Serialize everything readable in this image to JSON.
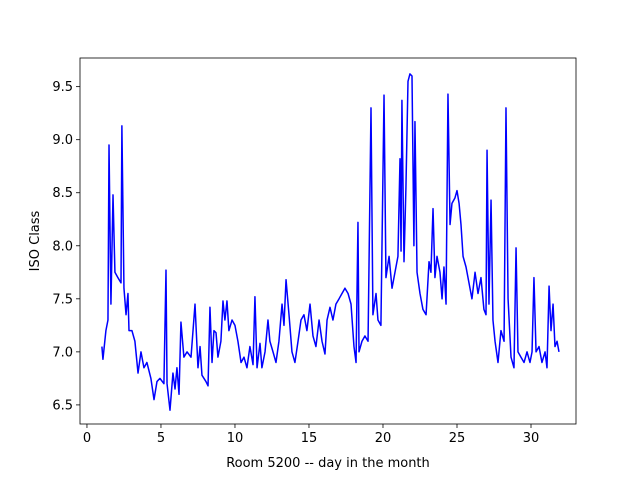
{
  "chart_data": {
    "type": "line",
    "xlabel": "Room 5200 -- day in the month",
    "ylabel": "ISO Class",
    "xlim": [
      -0.47,
      33.04
    ],
    "ylim": [
      6.32,
      9.77
    ],
    "xticks": [
      0,
      5,
      10,
      15,
      20,
      25,
      30
    ],
    "yticks": [
      6.5,
      {
        "value": 7.0,
        "label": "7.0"
      },
      7.5,
      {
        "value": 8.0,
        "label": "8.0"
      },
      8.5,
      {
        "value": 9.0,
        "label": "9.0"
      },
      9.5
    ],
    "x": [
      1.01,
      1.08,
      1.28,
      1.42,
      1.49,
      1.62,
      1.76,
      1.89,
      2.09,
      2.3,
      2.36,
      2.5,
      2.64,
      2.77,
      2.84,
      3.04,
      3.24,
      3.45,
      3.65,
      3.85,
      4.05,
      4.32,
      4.53,
      4.73,
      4.93,
      5.2,
      5.34,
      5.41,
      5.61,
      5.81,
      5.95,
      6.08,
      6.22,
      6.35,
      6.55,
      6.76,
      7.03,
      7.3,
      7.5,
      7.64,
      7.77,
      8.04,
      8.18,
      8.31,
      8.45,
      8.58,
      8.72,
      8.85,
      9.05,
      9.19,
      9.32,
      9.46,
      9.59,
      9.8,
      10.0,
      10.2,
      10.41,
      10.61,
      10.81,
      11.01,
      11.22,
      11.35,
      11.49,
      11.69,
      11.82,
      12.03,
      12.23,
      12.36,
      12.57,
      12.77,
      12.97,
      13.18,
      13.31,
      13.45,
      13.65,
      13.85,
      14.05,
      14.26,
      14.46,
      14.66,
      14.86,
      15.07,
      15.27,
      15.47,
      15.68,
      15.88,
      16.08,
      16.22,
      16.42,
      16.62,
      16.82,
      17.03,
      17.23,
      17.43,
      17.64,
      17.84,
      18.04,
      18.18,
      18.31,
      18.38,
      18.58,
      18.78,
      18.99,
      19.19,
      19.32,
      19.53,
      19.66,
      19.86,
      20.07,
      20.2,
      20.41,
      20.61,
      20.81,
      21.01,
      21.15,
      21.22,
      21.28,
      21.42,
      21.55,
      21.69,
      21.82,
      21.96,
      22.09,
      22.16,
      22.3,
      22.5,
      22.7,
      22.91,
      23.11,
      23.24,
      23.38,
      23.51,
      23.65,
      23.85,
      23.99,
      24.12,
      24.26,
      24.39,
      24.53,
      24.66,
      24.86,
      25.0,
      25.14,
      25.27,
      25.41,
      25.61,
      25.81,
      26.01,
      26.22,
      26.42,
      26.62,
      26.82,
      26.96,
      27.03,
      27.16,
      27.3,
      27.43,
      27.57,
      27.77,
      27.97,
      28.18,
      28.31,
      28.45,
      28.65,
      28.85,
      28.99,
      29.12,
      29.32,
      29.53,
      29.73,
      29.93,
      30.07,
      30.2,
      30.34,
      30.54,
      30.74,
      30.95,
      31.08,
      31.22,
      31.35,
      31.49,
      31.62,
      31.76,
      31.89
    ],
    "series": [
      {
        "color": "#0000ff",
        "values": [
          7.05,
          6.93,
          7.2,
          7.3,
          8.95,
          7.45,
          8.48,
          7.75,
          7.7,
          7.65,
          9.13,
          7.6,
          7.35,
          7.55,
          7.2,
          7.2,
          7.1,
          6.8,
          7.0,
          6.85,
          6.9,
          6.75,
          6.55,
          6.72,
          6.75,
          6.7,
          7.77,
          6.7,
          6.45,
          6.8,
          6.65,
          6.85,
          6.6,
          7.28,
          6.95,
          7.0,
          6.95,
          7.45,
          6.85,
          7.05,
          6.78,
          6.72,
          6.68,
          7.42,
          6.9,
          7.2,
          7.18,
          6.95,
          7.1,
          7.48,
          7.3,
          7.48,
          7.2,
          7.3,
          7.25,
          7.1,
          6.9,
          6.95,
          6.85,
          7.05,
          6.88,
          7.52,
          6.85,
          7.08,
          6.85,
          7.0,
          7.3,
          7.1,
          7.0,
          6.9,
          7.1,
          7.45,
          7.25,
          7.68,
          7.35,
          7.0,
          6.9,
          7.1,
          7.3,
          7.35,
          7.2,
          7.45,
          7.15,
          7.05,
          7.3,
          7.1,
          6.98,
          7.3,
          7.42,
          7.3,
          7.45,
          7.5,
          7.55,
          7.6,
          7.55,
          7.45,
          7.05,
          6.9,
          8.22,
          7.0,
          7.1,
          7.15,
          7.1,
          9.3,
          7.35,
          7.55,
          7.3,
          7.25,
          9.42,
          7.7,
          7.9,
          7.6,
          7.75,
          7.9,
          8.82,
          7.95,
          9.37,
          7.85,
          8.55,
          9.55,
          9.62,
          9.6,
          8.0,
          9.17,
          7.75,
          7.55,
          7.4,
          7.35,
          7.85,
          7.75,
          8.35,
          7.7,
          7.9,
          7.75,
          7.5,
          7.8,
          7.45,
          9.43,
          8.2,
          8.4,
          8.45,
          8.52,
          8.4,
          8.2,
          7.9,
          7.8,
          7.65,
          7.5,
          7.75,
          7.55,
          7.7,
          7.4,
          7.35,
          8.9,
          7.45,
          8.43,
          7.3,
          7.1,
          6.9,
          7.2,
          7.1,
          9.3,
          7.5,
          6.95,
          6.85,
          7.98,
          7.0,
          6.95,
          6.9,
          7.0,
          6.9,
          7.0,
          7.7,
          7.0,
          7.05,
          6.9,
          7.0,
          6.85,
          7.62,
          7.2,
          7.45,
          7.05,
          7.1,
          7.0
        ]
      }
    ]
  }
}
